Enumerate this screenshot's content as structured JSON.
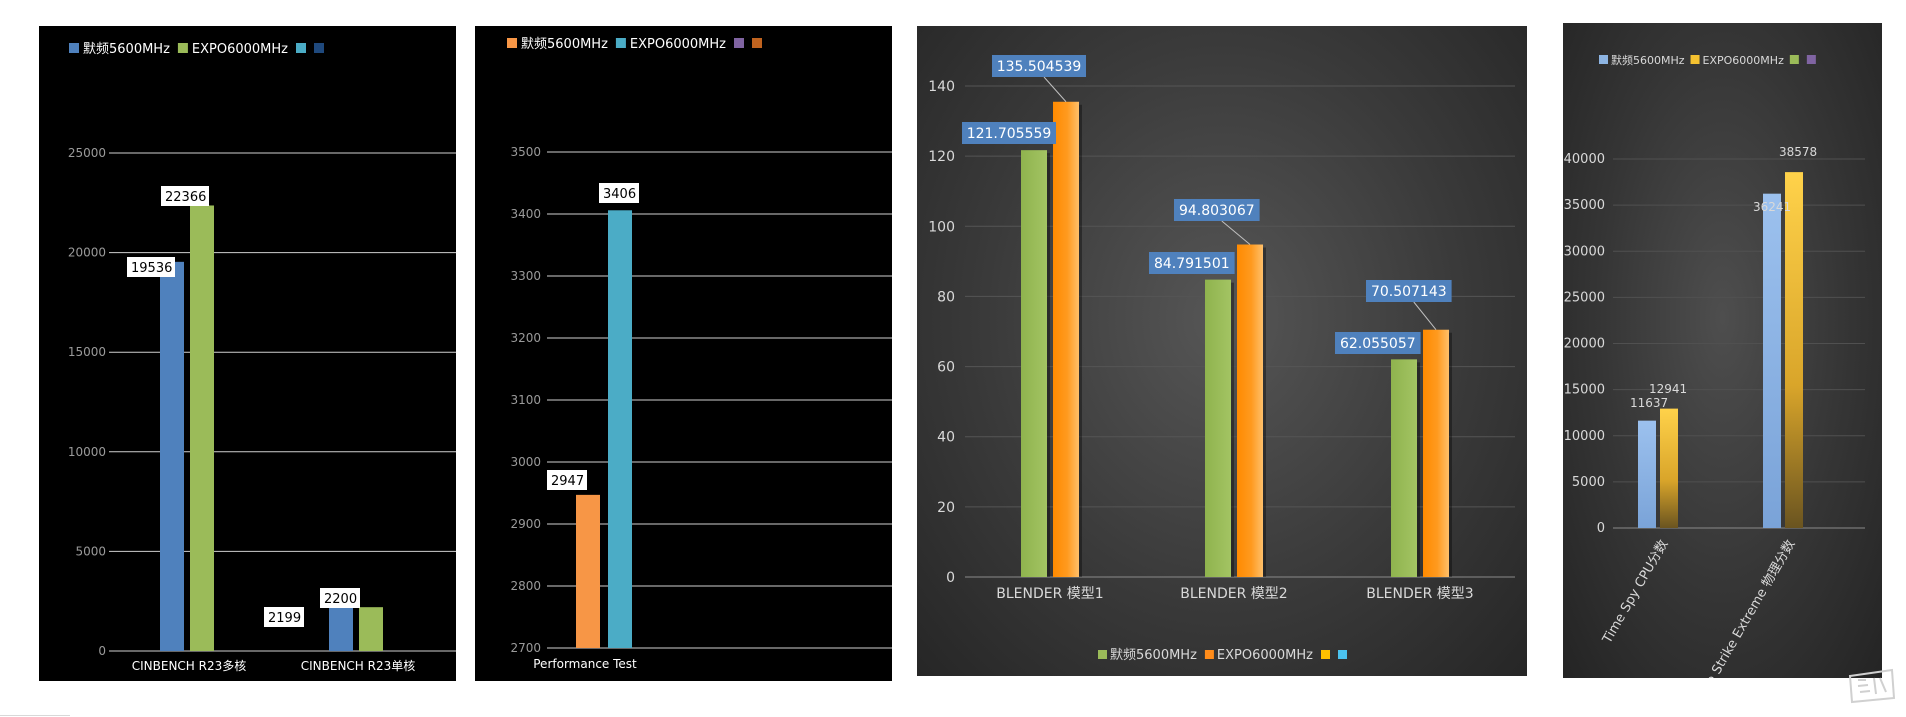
{
  "chart_data": [
    {
      "id": "p1",
      "type": "bar",
      "categories": [
        "CINBENCH R23多核",
        "CINBENCH R23单核"
      ],
      "series": [
        {
          "name": "默频5600MHz",
          "values": [
            19536,
            2199
          ],
          "color": "#4f81bd"
        },
        {
          "name": "EXPO6000MHz",
          "values": [
            22366,
            2200
          ],
          "color": "#9bbb59"
        }
      ],
      "legend_extra_colors": [
        "#4bacc6",
        "#1f497d"
      ],
      "ylim": [
        0,
        25000
      ],
      "yticks": [
        0,
        5000,
        10000,
        15000,
        20000,
        25000
      ],
      "grid": true,
      "legend": "top-left",
      "labels": [
        "19536",
        "22366",
        "2199",
        "2200"
      ]
    },
    {
      "id": "p2",
      "type": "bar",
      "categories": [
        "Performance Test"
      ],
      "series": [
        {
          "name": "默频5600MHz",
          "values": [
            2947
          ],
          "color": "#f79646"
        },
        {
          "name": "EXPO6000MHz",
          "values": [
            3406
          ],
          "color": "#4bacc6"
        }
      ],
      "legend_extra_colors": [
        "#8064a2",
        "#c0631f"
      ],
      "ylim": [
        2700,
        3500
      ],
      "yticks": [
        2700,
        2800,
        2900,
        3000,
        3100,
        3200,
        3300,
        3400,
        3500
      ],
      "grid": true,
      "legend": "top-left",
      "labels": [
        "2947",
        "3406"
      ]
    },
    {
      "id": "p3",
      "type": "bar",
      "categories": [
        "BLENDER  模型1",
        "BLENDER  模型2",
        "BLENDER  模型3"
      ],
      "series": [
        {
          "name": "默频5600MHz",
          "values": [
            121.705559,
            84.791501,
            62.055057
          ],
          "color": "#9bbb59"
        },
        {
          "name": "EXPO6000MHz",
          "values": [
            135.504539,
            94.803067,
            70.507143
          ],
          "color": "#ff8c1a"
        }
      ],
      "legend_extra_colors": [
        "#ffc000",
        "#4bc2ee"
      ],
      "ylim": [
        0,
        140
      ],
      "yticks": [
        0,
        20,
        40,
        60,
        80,
        100,
        120,
        140
      ],
      "grid": true,
      "legend": "bottom",
      "labels_green": [
        "121.705559",
        "84.791501",
        "62.055057"
      ],
      "labels_orange": [
        "135.504539",
        "94.803067",
        "70.507143"
      ]
    },
    {
      "id": "p4",
      "type": "bar",
      "categories": [
        "Time Spy CPU分数",
        "Fire Strike Extreme 物理分数"
      ],
      "series": [
        {
          "name": "默频5600MHz",
          "values": [
            11637,
            36241
          ],
          "color": "#8db4e2"
        },
        {
          "name": "EXPO6000MHz",
          "values": [
            12941,
            38578
          ],
          "color": "#f5c230"
        }
      ],
      "legend_extra_colors": [
        "#9bbb59",
        "#8064a2"
      ],
      "ylim": [
        0,
        40000
      ],
      "yticks": [
        0,
        5000,
        10000,
        15000,
        20000,
        25000,
        30000,
        35000,
        40000
      ],
      "grid": true,
      "legend": "top",
      "labels": [
        "11637",
        "12941",
        "36241",
        "38578"
      ]
    }
  ]
}
